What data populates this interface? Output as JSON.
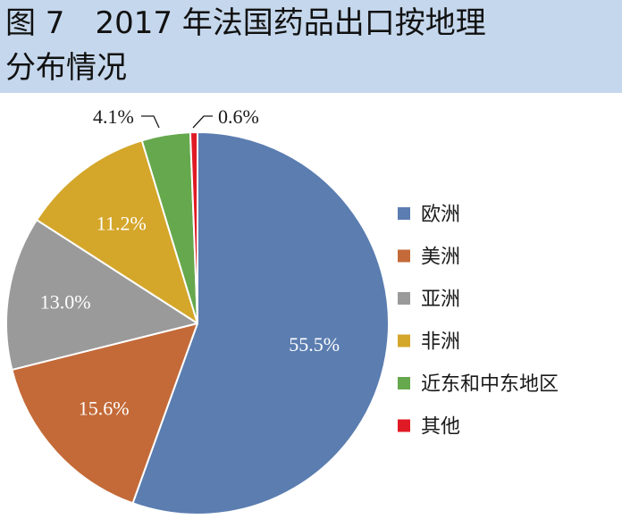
{
  "header": {
    "title_line1": "图 7　2017 年法国药品出口按地理",
    "title_line2": "分布情况",
    "background_color": "#c5d7ec"
  },
  "chart_data": {
    "type": "pie",
    "title": "图 7　2017 年法国药品出口按地理分布情况",
    "unit": "%",
    "legend_placement": "right",
    "slices": [
      {
        "name": "欧洲",
        "value": 55.5,
        "label": "55.5%",
        "color": "#5b7db0"
      },
      {
        "name": "美洲",
        "value": 15.6,
        "label": "15.6%",
        "color": "#c36a38"
      },
      {
        "name": "亚洲",
        "value": 13.0,
        "label": "13.0%",
        "color": "#9b9a9a"
      },
      {
        "name": "非洲",
        "value": 11.2,
        "label": "11.2%",
        "color": "#d4a62a"
      },
      {
        "name": "近东和中东地区",
        "value": 4.1,
        "label": "4.1%",
        "color": "#66a84d"
      },
      {
        "name": "其他",
        "value": 0.6,
        "label": "0.6%",
        "color": "#e01a24"
      }
    ]
  }
}
